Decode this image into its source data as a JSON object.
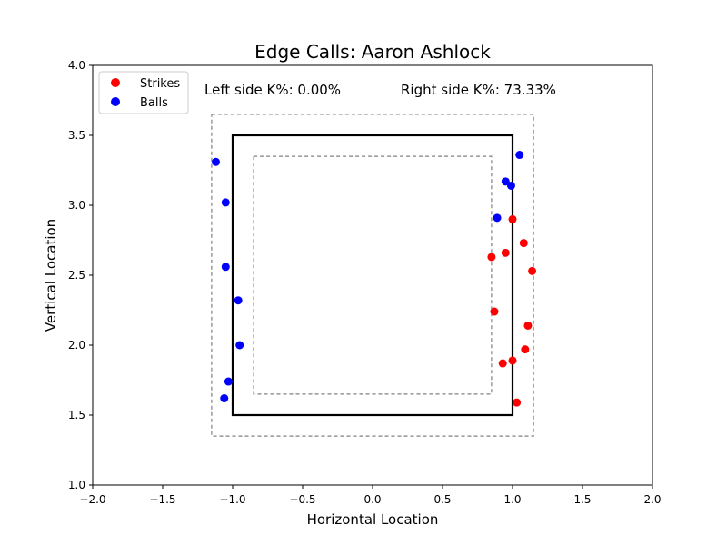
{
  "chart_data": {
    "type": "scatter",
    "title": "Edge Calls: Aaron Ashlock",
    "xlabel": "Horizontal Location",
    "ylabel": "Vertical Location",
    "xlim": [
      -2.0,
      2.0
    ],
    "ylim": [
      1.0,
      4.0
    ],
    "xticks": [
      "−2.0",
      "−1.5",
      "−1.0",
      "−0.5",
      "0.0",
      "0.5",
      "1.0",
      "1.5",
      "2.0"
    ],
    "yticks": [
      "1.0",
      "1.5",
      "2.0",
      "2.5",
      "3.0",
      "3.5",
      "4.0"
    ],
    "grid": false,
    "legend_position": "top-left",
    "annotations": {
      "left": "Left side K%: 0.00%",
      "right": "Right side K%: 73.33%"
    },
    "zones": {
      "strike_zone": {
        "x": [
          -1.0,
          1.0
        ],
        "y": [
          1.5,
          3.5
        ]
      },
      "outer_edge": {
        "x": [
          -1.15,
          1.15
        ],
        "y": [
          1.35,
          3.65
        ]
      },
      "inner_edge": {
        "x": [
          -0.85,
          0.85
        ],
        "y": [
          1.65,
          3.35
        ]
      }
    },
    "series": [
      {
        "name": "Strikes",
        "color": "#ff0000",
        "points": [
          [
            1.0,
            2.9
          ],
          [
            0.95,
            2.66
          ],
          [
            1.08,
            2.73
          ],
          [
            0.85,
            2.63
          ],
          [
            1.14,
            2.53
          ],
          [
            0.87,
            2.24
          ],
          [
            1.11,
            2.14
          ],
          [
            1.09,
            1.97
          ],
          [
            1.0,
            1.89
          ],
          [
            0.93,
            1.87
          ],
          [
            1.03,
            1.59
          ]
        ]
      },
      {
        "name": "Balls",
        "color": "#0000ff",
        "points": [
          [
            1.05,
            3.36
          ],
          [
            0.95,
            3.17
          ],
          [
            0.99,
            3.14
          ],
          [
            0.89,
            2.91
          ],
          [
            -1.12,
            3.31
          ],
          [
            -1.05,
            3.02
          ],
          [
            -1.05,
            2.56
          ],
          [
            -0.96,
            2.32
          ],
          [
            -0.95,
            2.0
          ],
          [
            -1.03,
            1.74
          ],
          [
            -1.06,
            1.62
          ]
        ]
      }
    ]
  }
}
